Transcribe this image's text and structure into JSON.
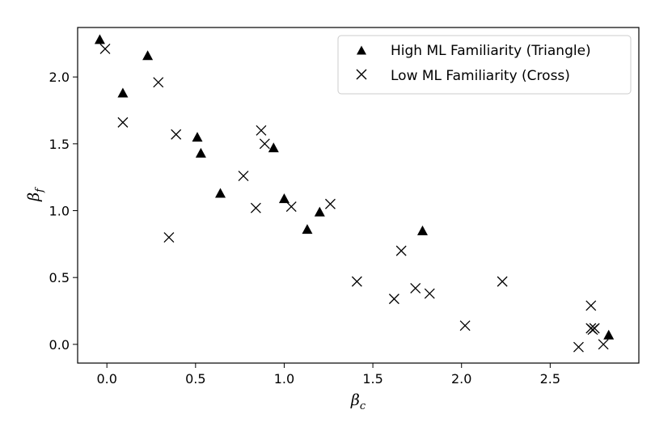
{
  "chart_data": {
    "type": "scatter",
    "title": "",
    "xlabel": {
      "base": "β",
      "sub": "c"
    },
    "ylabel": {
      "base": "β",
      "sub": "f"
    },
    "xlim": [
      -0.165,
      3.0
    ],
    "ylim": [
      -0.14,
      2.37
    ],
    "xticks": [
      0.0,
      0.5,
      1.0,
      1.5,
      2.0,
      2.5
    ],
    "xtick_labels": [
      "0.0",
      "0.5",
      "1.0",
      "1.5",
      "2.0",
      "2.5"
    ],
    "yticks": [
      0.0,
      0.5,
      1.0,
      1.5,
      2.0
    ],
    "ytick_labels": [
      "0.0",
      "0.5",
      "1.0",
      "1.5",
      "2.0"
    ],
    "grid": false,
    "legend_position": "top-right",
    "series": [
      {
        "name": "High ML Familiarity (Triangle)",
        "marker": "triangle",
        "color": "#000000",
        "points": [
          [
            -0.04,
            2.28
          ],
          [
            0.09,
            1.88
          ],
          [
            0.23,
            2.16
          ],
          [
            0.51,
            1.55
          ],
          [
            0.53,
            1.43
          ],
          [
            0.64,
            1.13
          ],
          [
            0.94,
            1.47
          ],
          [
            1.0,
            1.09
          ],
          [
            1.13,
            0.86
          ],
          [
            1.2,
            0.99
          ],
          [
            1.78,
            0.85
          ],
          [
            2.83,
            0.07
          ]
        ]
      },
      {
        "name": "Low ML Familiarity (Cross)",
        "marker": "cross",
        "color": "#000000",
        "points": [
          [
            -0.01,
            2.21
          ],
          [
            0.09,
            1.66
          ],
          [
            0.29,
            1.96
          ],
          [
            0.35,
            0.8
          ],
          [
            0.39,
            1.57
          ],
          [
            0.77,
            1.26
          ],
          [
            0.84,
            1.02
          ],
          [
            0.87,
            1.6
          ],
          [
            0.89,
            1.5
          ],
          [
            1.04,
            1.03
          ],
          [
            1.26,
            1.05
          ],
          [
            1.41,
            0.47
          ],
          [
            1.62,
            0.34
          ],
          [
            1.66,
            0.7
          ],
          [
            1.74,
            0.42
          ],
          [
            1.82,
            0.38
          ],
          [
            2.02,
            0.14
          ],
          [
            2.23,
            0.47
          ],
          [
            2.66,
            -0.02
          ],
          [
            2.73,
            0.29
          ],
          [
            2.73,
            0.12
          ],
          [
            2.74,
            0.11
          ],
          [
            2.75,
            0.12
          ],
          [
            2.8,
            0.0
          ]
        ]
      }
    ]
  }
}
